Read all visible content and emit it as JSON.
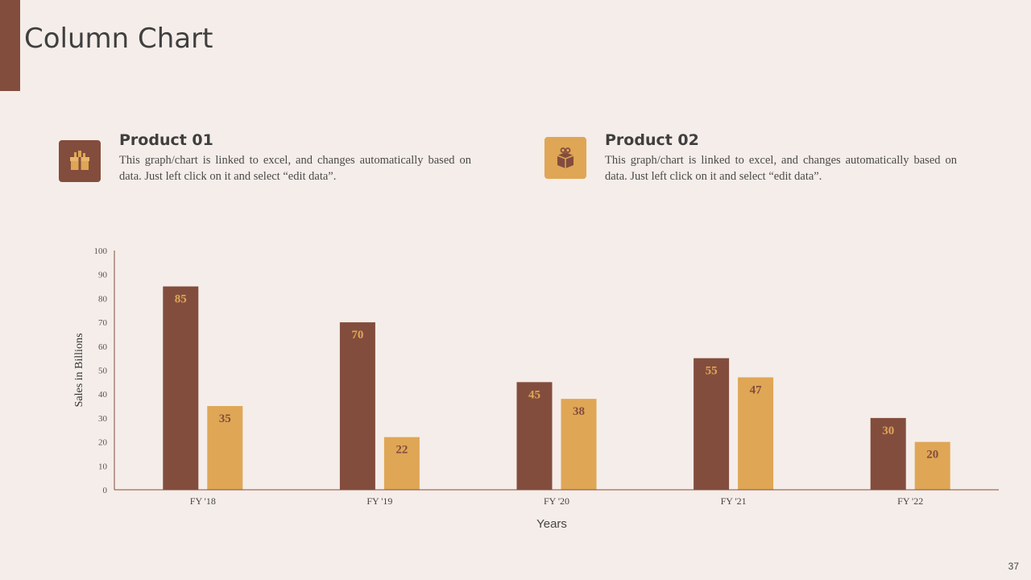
{
  "page": {
    "title": "Column Chart",
    "page_number": "37"
  },
  "products": [
    {
      "title": "Product 01",
      "text": "This graph/chart is linked to excel, and changes automatically based on data. Just left click on it and select “edit data”.",
      "icon": "gift-boxes-icon",
      "color": "#834d3d"
    },
    {
      "title": "Product 02",
      "text": "This graph/chart is linked to excel, and changes automatically based on data. Just left click on it and select “edit data”.",
      "icon": "gift-box-icon",
      "color": "#dfa655"
    }
  ],
  "chart_data": {
    "type": "bar",
    "categories": [
      "FY '18",
      "FY '19",
      "FY '20",
      "FY '21",
      "FY '22"
    ],
    "series": [
      {
        "name": "Product 01",
        "values": [
          85,
          70,
          45,
          55,
          30
        ],
        "color": "#834d3d",
        "label_color": "#dfa655"
      },
      {
        "name": "Product 02",
        "values": [
          35,
          22,
          38,
          47,
          20
        ],
        "color": "#dfa655",
        "label_color": "#834d3d"
      }
    ],
    "xlabel": "Years",
    "ylabel": "Sales in Billions",
    "ylim": [
      0,
      100
    ],
    "yticks": [
      0,
      10,
      20,
      30,
      40,
      50,
      60,
      70,
      80,
      90,
      100
    ],
    "grid": false,
    "legend": "none"
  }
}
